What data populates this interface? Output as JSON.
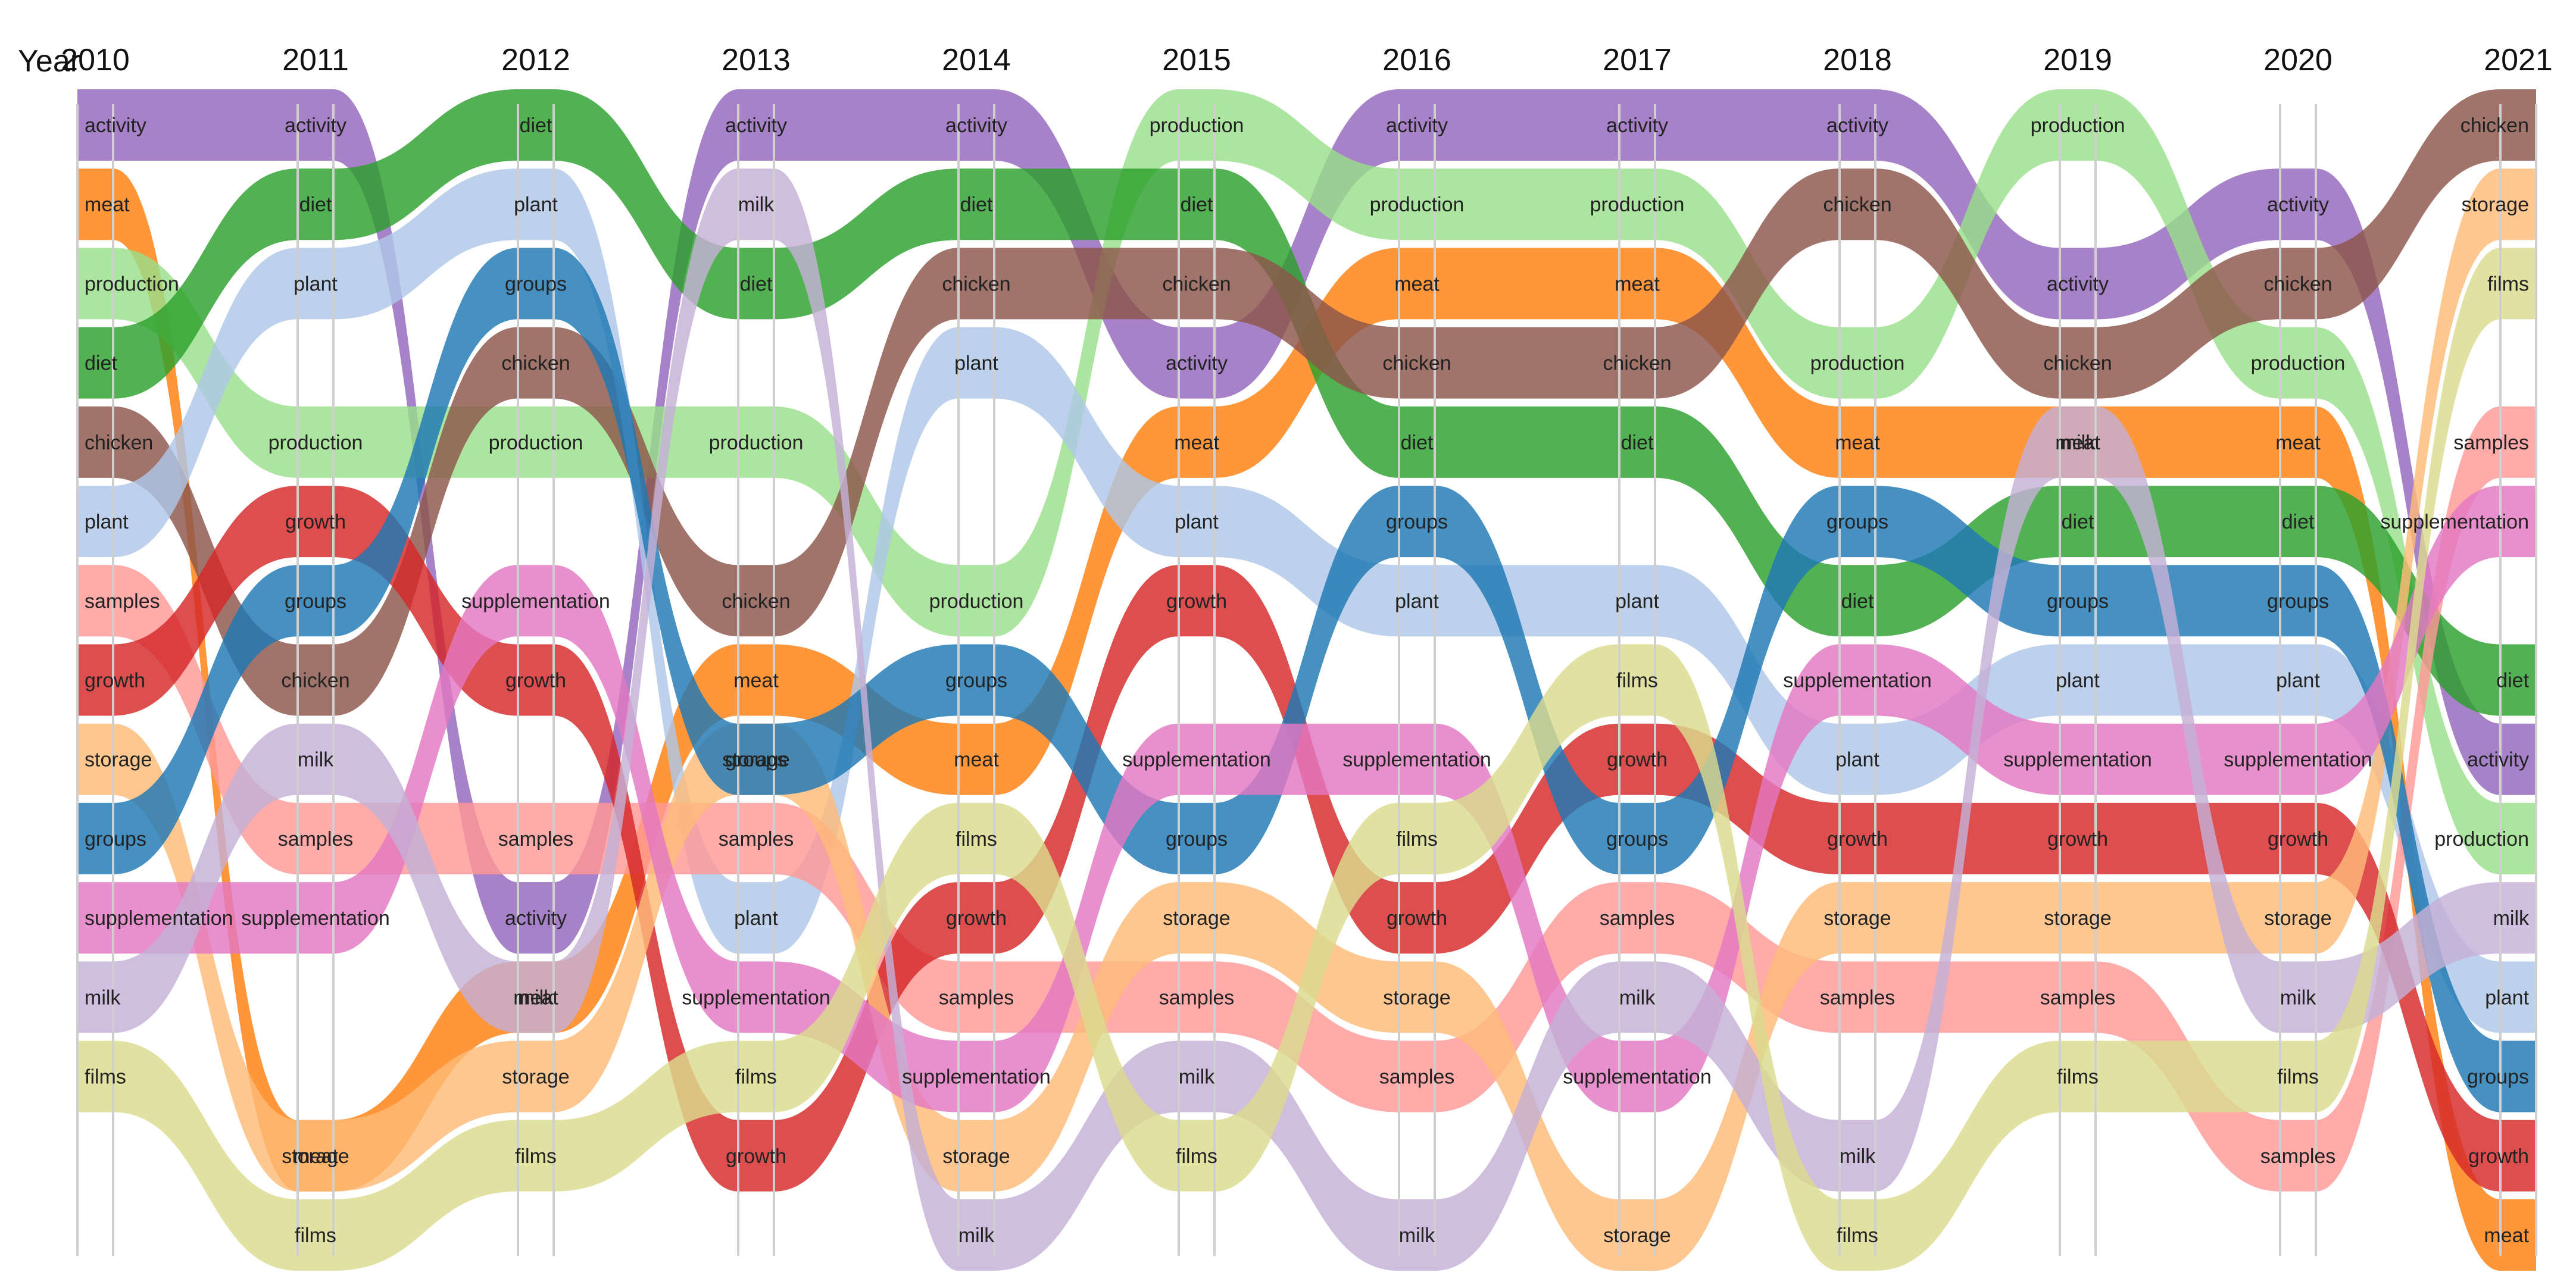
{
  "chart_data": {
    "type": "bump",
    "title": "",
    "xlabel": "Year",
    "ylabel": "",
    "x_axis_title": "Year",
    "years": [
      "2010",
      "2011",
      "2012",
      "2013",
      "2014",
      "2015",
      "2016",
      "2017",
      "2018",
      "2019",
      "2020",
      "2021"
    ],
    "rank_range": [
      1,
      15
    ],
    "series": [
      {
        "name": "activity",
        "color": "#9467bd",
        "ranks": [
          1,
          1,
          11,
          1,
          1,
          4,
          1,
          1,
          1,
          3,
          2,
          9
        ]
      },
      {
        "name": "meat",
        "color": "#ff7f0e",
        "ranks": [
          2,
          14,
          12,
          8,
          9,
          5,
          3,
          3,
          5,
          5,
          5,
          15
        ]
      },
      {
        "name": "production",
        "color": "#98df8a",
        "ranks": [
          3,
          5,
          5,
          5,
          7,
          1,
          2,
          2,
          4,
          1,
          4,
          10
        ]
      },
      {
        "name": "diet",
        "color": "#2ca02c",
        "ranks": [
          4,
          2,
          1,
          3,
          2,
          2,
          5,
          5,
          7,
          6,
          6,
          8
        ]
      },
      {
        "name": "chicken",
        "color": "#8c564b",
        "ranks": [
          5,
          8,
          4,
          7,
          3,
          3,
          4,
          4,
          2,
          4,
          3,
          1
        ]
      },
      {
        "name": "plant",
        "color": "#aec7e8",
        "ranks": [
          6,
          3,
          2,
          11,
          4,
          6,
          7,
          7,
          9,
          8,
          8,
          12
        ]
      },
      {
        "name": "samples",
        "color": "#ff9896",
        "ranks": [
          7,
          10,
          10,
          10,
          12,
          12,
          13,
          11,
          12,
          12,
          14,
          5
        ]
      },
      {
        "name": "growth",
        "color": "#d62728",
        "ranks": [
          8,
          6,
          8,
          14,
          11,
          7,
          11,
          9,
          10,
          10,
          10,
          14
        ]
      },
      {
        "name": "storage",
        "color": "#ffbb78",
        "ranks": [
          9,
          14,
          13,
          9,
          14,
          11,
          12,
          15,
          11,
          11,
          11,
          2
        ]
      },
      {
        "name": "groups",
        "color": "#1f77b4",
        "ranks": [
          10,
          7,
          3,
          9,
          8,
          10,
          6,
          10,
          6,
          7,
          7,
          13
        ]
      },
      {
        "name": "supplementation",
        "color": "#e377c2",
        "ranks": [
          11,
          11,
          7,
          12,
          13,
          9,
          9,
          13,
          8,
          9,
          9,
          6
        ]
      },
      {
        "name": "milk",
        "color": "#c5b0d5",
        "ranks": [
          12,
          9,
          12,
          2,
          15,
          13,
          15,
          12,
          14,
          5,
          12,
          11
        ]
      },
      {
        "name": "films",
        "color": "#dbdb8d",
        "ranks": [
          13,
          15,
          14,
          13,
          10,
          14,
          10,
          8,
          15,
          13,
          13,
          3
        ]
      }
    ],
    "series_palette_note": "",
    "labels": [
      {
        "year": "2010",
        "items": [
          "activity",
          "meat",
          "production",
          "diet",
          "chicken",
          "plant",
          "samples",
          "growth",
          "storage",
          "groups",
          "supplementation",
          "milk",
          "films"
        ]
      },
      {
        "year": "2011",
        "items": [
          "activity",
          "diet",
          "plant",
          "production",
          "growth",
          "groups",
          "chicken",
          "milk",
          "samples",
          "supplementation",
          "meat",
          "storage",
          "films"
        ]
      },
      {
        "year": "2012",
        "items": [
          "diet",
          "plant",
          "groups",
          "chicken",
          "production",
          "supplementation",
          "growth",
          "activity",
          "samples",
          "meat",
          "milk",
          "storage",
          "films"
        ]
      },
      {
        "year": "2013",
        "items": [
          "activity",
          "milk",
          "diet",
          "production",
          "meat",
          "chicken",
          "storage",
          "groups",
          "samples",
          "plant",
          "supplementation",
          "films",
          "growth"
        ]
      },
      {
        "year": "2014",
        "items": [
          "activity",
          "diet",
          "chicken",
          "plant",
          "production",
          "groups",
          "meat",
          "films",
          "growth",
          "samples",
          "supplementation",
          "storage",
          "milk"
        ]
      },
      {
        "year": "2015",
        "items": [
          "production",
          "diet",
          "activity",
          "chicken",
          "plant",
          "growth",
          "supplementation",
          "groups",
          "meat",
          "storage",
          "samples",
          "milk",
          "films"
        ]
      },
      {
        "year": "2016",
        "items": [
          "production",
          "activity",
          "meat",
          "diet",
          "chicken",
          "groups",
          "plant",
          "supplementation",
          "milk",
          "growth",
          "storage",
          "samples",
          "films"
        ]
      },
      {
        "year": "2017",
        "items": [
          "activity",
          "production",
          "meat",
          "chicken",
          "diet",
          "groups",
          "plant",
          "supplementation",
          "films",
          "growth",
          "storage",
          "samples",
          "milk"
        ]
      },
      {
        "year": "2018",
        "items": [
          "activity",
          "production",
          "meat",
          "diet",
          "chicken",
          "films",
          "growth",
          "plant",
          "groups",
          "samples",
          "milk",
          "supplementation",
          "storage"
        ]
      },
      {
        "year": "2019",
        "items": [
          "activity",
          "chicken",
          "production",
          "meat",
          "groups",
          "diet",
          "supplementation",
          "plant",
          "growth",
          "storage",
          "samples",
          "milk",
          "films"
        ]
      },
      {
        "year": "2020",
        "items": [
          "production",
          "activity",
          "chicken",
          "meat",
          "diet",
          "milk",
          "groups",
          "plant",
          "supplementation",
          "films",
          "growth",
          "storage",
          "samples"
        ]
      },
      {
        "year": "2021",
        "items": [
          "chicken",
          "storage",
          "films",
          "samples",
          "supplementation",
          "activity",
          "diet",
          "production",
          "milk",
          "plant",
          "groups",
          "growth",
          "meat"
        ]
      }
    ]
  }
}
